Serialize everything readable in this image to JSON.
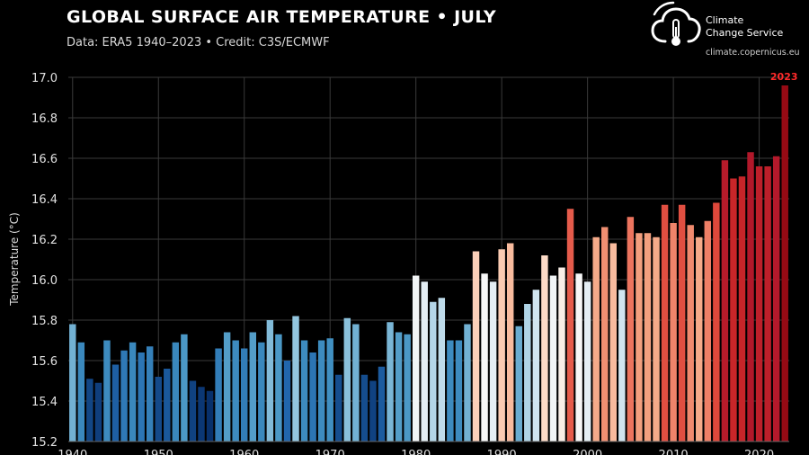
{
  "header": {
    "title": "GLOBAL SURFACE AIR TEMPERATURE • JULY",
    "subtitle": "Data: ERA5 1940–2023 • Credit: C3S/ECMWF"
  },
  "logo": {
    "name_line1": "Climate",
    "name_line2": "Change Service",
    "url": "climate.copernicus.eu",
    "icon": "cloud-thermometer-icon"
  },
  "chart_data": {
    "type": "bar",
    "title": "GLOBAL SURFACE AIR TEMPERATURE • JULY",
    "ylabel": "Temperature (°C)",
    "xlabel": "",
    "ylim": [
      15.2,
      17.0
    ],
    "yticks": [
      "15.2",
      "15.4",
      "15.6",
      "15.8",
      "16.0",
      "16.2",
      "16.4",
      "16.6",
      "16.8",
      "17.0"
    ],
    "xticks": [
      "1940",
      "1950",
      "1960",
      "1970",
      "1980",
      "1990",
      "2000",
      "2010",
      "2020"
    ],
    "grid": true,
    "highlight_label": "2023",
    "x": [
      1940,
      1941,
      1942,
      1943,
      1944,
      1945,
      1946,
      1947,
      1948,
      1949,
      1950,
      1951,
      1952,
      1953,
      1954,
      1955,
      1956,
      1957,
      1958,
      1959,
      1960,
      1961,
      1962,
      1963,
      1964,
      1965,
      1966,
      1967,
      1968,
      1969,
      1970,
      1971,
      1972,
      1973,
      1974,
      1975,
      1976,
      1977,
      1978,
      1979,
      1980,
      1981,
      1982,
      1983,
      1984,
      1985,
      1986,
      1987,
      1988,
      1989,
      1990,
      1991,
      1992,
      1993,
      1994,
      1995,
      1996,
      1997,
      1998,
      1999,
      2000,
      2001,
      2002,
      2003,
      2004,
      2005,
      2006,
      2007,
      2008,
      2009,
      2010,
      2011,
      2012,
      2013,
      2014,
      2015,
      2016,
      2017,
      2018,
      2019,
      2020,
      2021,
      2022,
      2023
    ],
    "values": [
      15.78,
      15.69,
      15.51,
      15.49,
      15.7,
      15.58,
      15.65,
      15.69,
      15.64,
      15.67,
      15.52,
      15.56,
      15.69,
      15.73,
      15.5,
      15.47,
      15.45,
      15.66,
      15.74,
      15.7,
      15.66,
      15.74,
      15.69,
      15.8,
      15.73,
      15.6,
      15.82,
      15.7,
      15.64,
      15.7,
      15.71,
      15.53,
      15.81,
      15.78,
      15.53,
      15.5,
      15.57,
      15.79,
      15.74,
      15.73,
      16.02,
      15.99,
      15.89,
      15.91,
      15.7,
      15.7,
      15.78,
      16.14,
      16.03,
      15.99,
      16.15,
      16.18,
      15.77,
      15.88,
      15.95,
      16.12,
      16.02,
      16.06,
      16.35,
      16.03,
      15.99,
      16.21,
      16.26,
      16.18,
      15.95,
      16.31,
      16.23,
      16.23,
      16.21,
      16.37,
      16.28,
      16.37,
      16.27,
      16.21,
      16.29,
      16.38,
      16.59,
      16.5,
      16.51,
      16.63,
      16.56,
      16.56,
      16.61,
      16.96
    ]
  }
}
